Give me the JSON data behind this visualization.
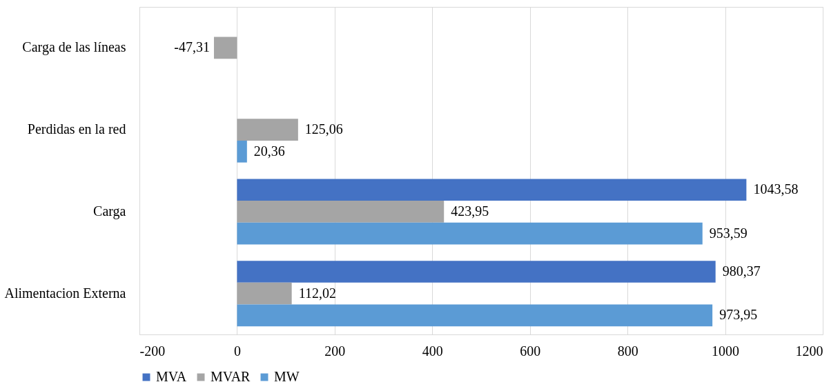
{
  "chart_data": {
    "type": "bar",
    "orientation": "horizontal",
    "categories": [
      "Carga de las líneas",
      "Perdidas en la red",
      "Carga",
      "Alimentacion Externa"
    ],
    "series": [
      {
        "name": "MVA",
        "color": "#4472c4",
        "values": [
          null,
          null,
          1043.58,
          980.37
        ],
        "value_labels": [
          null,
          null,
          "1043,58",
          "980,37"
        ]
      },
      {
        "name": "MVAR",
        "color": "#a5a5a5",
        "values": [
          -47.31,
          125.06,
          423.95,
          112.02
        ],
        "value_labels": [
          "-47,31",
          "125,06",
          "423,95",
          "112,02"
        ]
      },
      {
        "name": "MW",
        "color": "#5b9bd5",
        "values": [
          null,
          20.36,
          953.59,
          973.95
        ],
        "value_labels": [
          null,
          "20,36",
          "953,59",
          "973,95"
        ]
      }
    ],
    "xlim": [
      -200,
      1200
    ],
    "xticks": [
      -200,
      0,
      200,
      400,
      600,
      800,
      1000,
      1200
    ],
    "grid": "x",
    "legend": "bottom"
  }
}
